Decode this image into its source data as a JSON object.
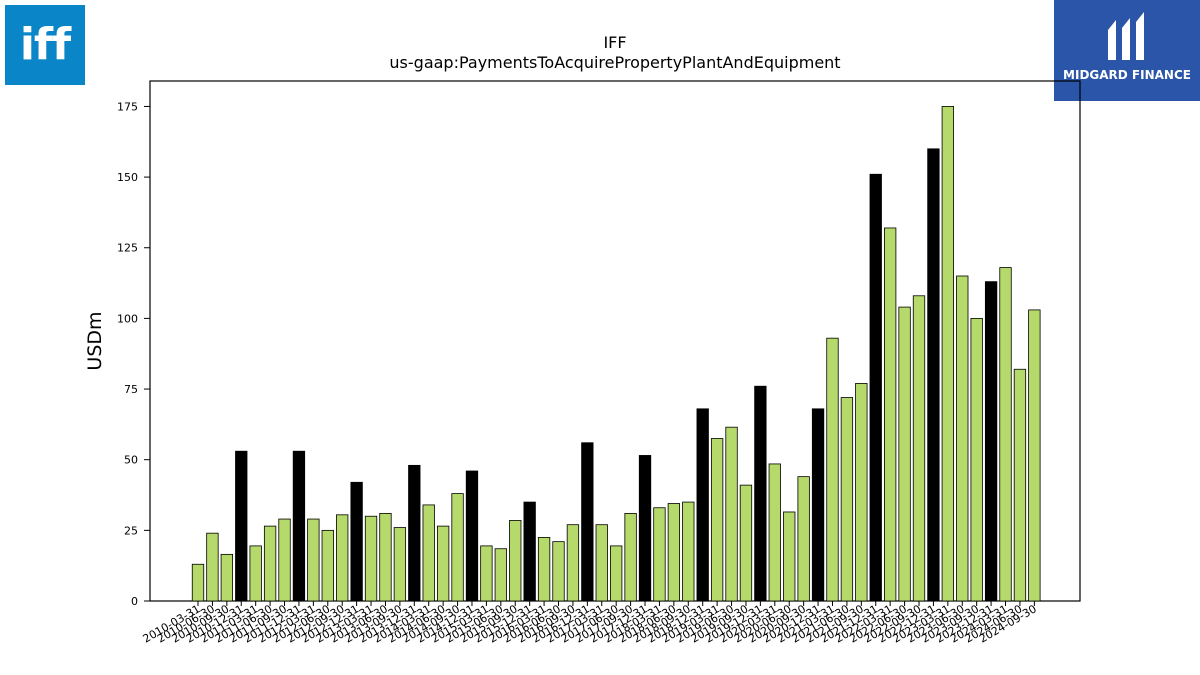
{
  "logos": {
    "left_text": "iff",
    "right_text": "MIDGARD FINANCE"
  },
  "chart_data": {
    "type": "bar",
    "title": "IFF",
    "subtitle": "us-gaap:PaymentsToAcquirePropertyPlantAndEquipment",
    "xlabel": "",
    "ylabel": "USDm",
    "ylim": [
      0,
      184
    ],
    "yticks": [
      0,
      25,
      50,
      75,
      100,
      125,
      150,
      175
    ],
    "grid": false,
    "colors": {
      "quarter": "#b5d96a",
      "year_end": "#000000",
      "edge": "#000000"
    },
    "categories": [
      "2010-03-31",
      "2010-06-30",
      "2010-09-30",
      "2010-12-31",
      "2011-03-31",
      "2011-06-30",
      "2011-09-30",
      "2011-12-31",
      "2012-03-31",
      "2012-06-30",
      "2012-09-30",
      "2012-12-31",
      "2013-03-31",
      "2013-06-30",
      "2013-09-30",
      "2013-12-31",
      "2014-03-31",
      "2014-06-30",
      "2014-09-30",
      "2014-12-31",
      "2015-03-31",
      "2015-06-30",
      "2015-09-30",
      "2015-12-31",
      "2016-03-31",
      "2016-06-30",
      "2016-09-30",
      "2016-12-31",
      "2017-03-31",
      "2017-06-30",
      "2017-09-30",
      "2017-12-31",
      "2018-03-31",
      "2018-06-30",
      "2018-09-30",
      "2018-12-31",
      "2019-03-31",
      "2019-06-30",
      "2019-09-30",
      "2019-12-31",
      "2020-03-31",
      "2020-06-30",
      "2020-09-30",
      "2020-12-31",
      "2021-03-31",
      "2021-06-30",
      "2021-09-30",
      "2021-12-31",
      "2022-03-31",
      "2022-06-30",
      "2022-09-30",
      "2022-12-31",
      "2023-03-31",
      "2023-06-30",
      "2023-09-30",
      "2023-12-31",
      "2024-03-31",
      "2024-06-30",
      "2024-09-30"
    ],
    "values": [
      13,
      24,
      16.5,
      53,
      19.5,
      26.5,
      29,
      53,
      29,
      25,
      30.5,
      42,
      30,
      31,
      26,
      48,
      34,
      26.5,
      38,
      46,
      19.5,
      18.5,
      28.5,
      35,
      22.5,
      21,
      27,
      56,
      27,
      19.5,
      31,
      51.5,
      33,
      34.5,
      35,
      68,
      57.5,
      61.5,
      41,
      76,
      48.5,
      31.5,
      44,
      68,
      93,
      72,
      77,
      151,
      132,
      104,
      108,
      160,
      175,
      115,
      100,
      113,
      118,
      82,
      103
    ],
    "year_end_flags": [
      false,
      false,
      false,
      true,
      false,
      false,
      false,
      true,
      false,
      false,
      false,
      true,
      false,
      false,
      false,
      true,
      false,
      false,
      false,
      true,
      false,
      false,
      false,
      true,
      false,
      false,
      false,
      true,
      false,
      false,
      false,
      true,
      false,
      false,
      false,
      true,
      false,
      false,
      false,
      true,
      false,
      false,
      false,
      true,
      false,
      false,
      false,
      true,
      false,
      false,
      false,
      true,
      false,
      false,
      false,
      true,
      false,
      false,
      false
    ]
  }
}
